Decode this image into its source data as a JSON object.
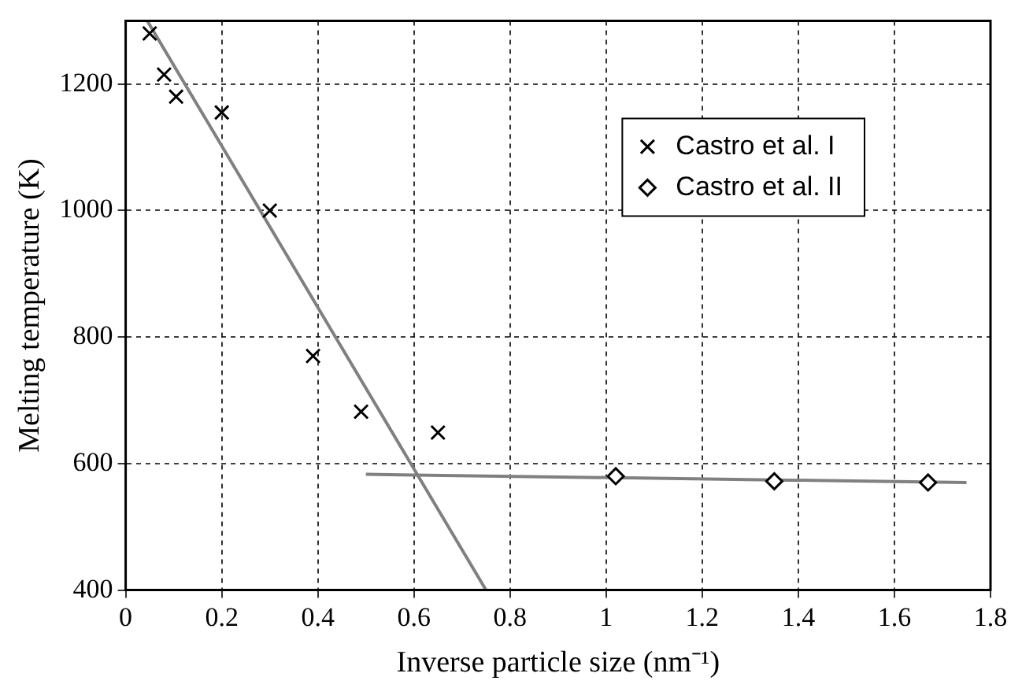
{
  "chart_data": {
    "type": "scatter",
    "xlabel": "Inverse particle size (nm⁻¹)",
    "ylabel": "Melting temperature (K)",
    "xlim": [
      0,
      1.8
    ],
    "xticks": [
      0,
      0.2,
      0.4,
      0.6,
      0.8,
      1,
      1.2,
      1.4,
      1.6,
      1.8
    ],
    "ylim": [
      400,
      1300
    ],
    "yticks": [
      400,
      600,
      800,
      1000,
      1200
    ],
    "grid": true,
    "legend": "top right",
    "series": [
      {
        "name": "Castro et al. I",
        "color": "#000000",
        "marker": "cross",
        "x": [
          0.05,
          0.08,
          0.105,
          0.2,
          0.3,
          0.39,
          0.49,
          0.65
        ],
        "values": [
          1280,
          1215,
          1180,
          1155,
          1000,
          770,
          682,
          649
        ]
      },
      {
        "name": "Castro et al. II",
        "color": "#000000",
        "marker": "diamond",
        "x": [
          1.02,
          1.35,
          1.67
        ],
        "values": [
          580,
          572,
          570
        ]
      },
      {
        "type": "line",
        "color": "#808080",
        "marker": "none",
        "x": [
          0.045,
          0.75
        ],
        "values": [
          1300,
          400
        ]
      },
      {
        "type": "line",
        "color": "#808080",
        "marker": "none",
        "x": [
          0.5,
          1.75
        ],
        "values": [
          583,
          570
        ]
      }
    ]
  }
}
